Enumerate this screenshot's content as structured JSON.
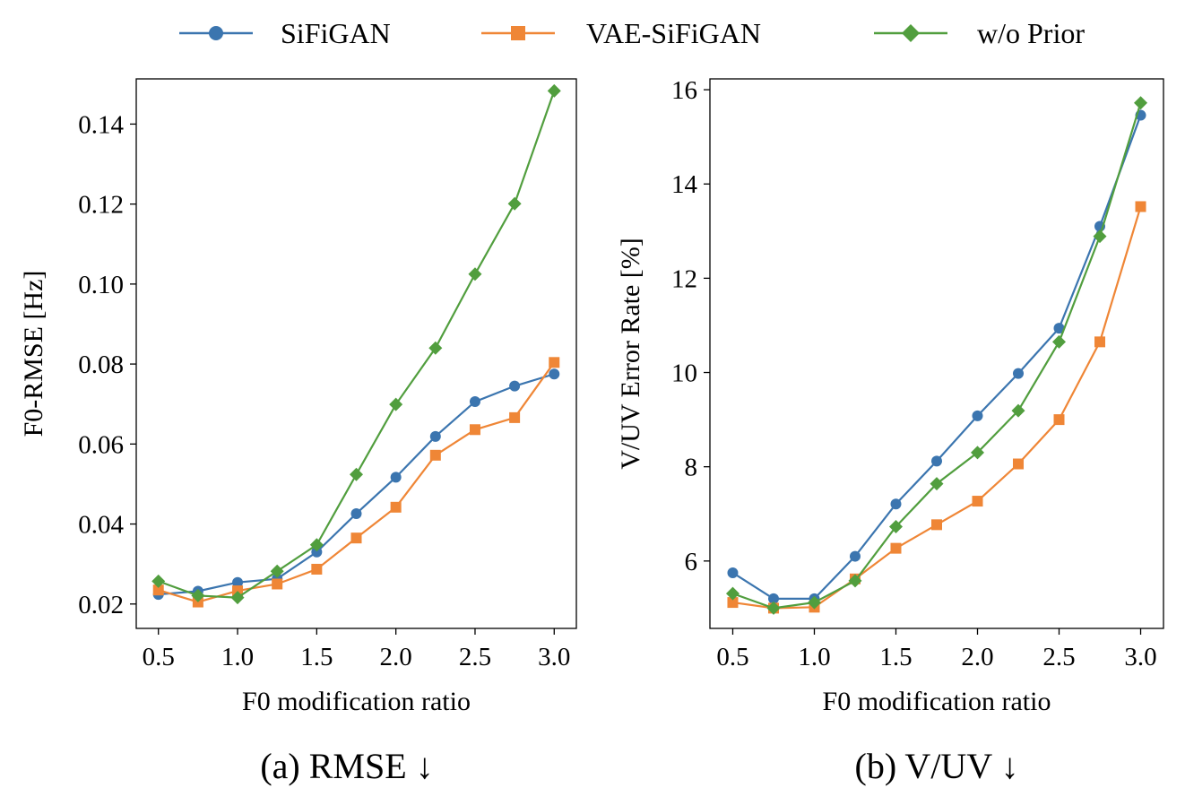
{
  "legend": {
    "entries": [
      {
        "label": "SiFiGAN",
        "color": "#3b75af",
        "marker": "circle"
      },
      {
        "label": "VAE-SiFiGAN",
        "color": "#ef8636",
        "marker": "square"
      },
      {
        "label": "w/o Prior",
        "color": "#519e3e",
        "marker": "diamond"
      }
    ]
  },
  "chart_data": [
    {
      "type": "line",
      "caption": "(a) RMSE ↓",
      "xlabel": "F0 modification ratio",
      "ylabel": "F0-RMSE [Hz]",
      "xlim": [
        0.36,
        3.14
      ],
      "ylim": [
        0.0139,
        0.1513
      ],
      "x_ticks": [
        "0.5",
        "1.0",
        "1.5",
        "2.0",
        "2.5",
        "3.0"
      ],
      "y_ticks": [
        "0.02",
        "0.04",
        "0.06",
        "0.08",
        "0.10",
        "0.12",
        "0.14"
      ],
      "x": [
        0.5,
        0.75,
        1.0,
        1.25,
        1.5,
        1.75,
        2.0,
        2.25,
        2.5,
        2.75,
        3.0
      ],
      "series": [
        {
          "name": "SiFiGAN",
          "color": "#3b75af",
          "marker": "circle",
          "values": [
            0.0224,
            0.0232,
            0.0254,
            0.0263,
            0.033,
            0.0426,
            0.0517,
            0.0619,
            0.0706,
            0.0745,
            0.0775
          ]
        },
        {
          "name": "VAE-SiFiGAN",
          "color": "#ef8636",
          "marker": "square",
          "values": [
            0.0235,
            0.0205,
            0.0233,
            0.025,
            0.0287,
            0.0365,
            0.0442,
            0.0572,
            0.0636,
            0.0666,
            0.0804
          ]
        },
        {
          "name": "w/o Prior",
          "color": "#519e3e",
          "marker": "diamond",
          "values": [
            0.0257,
            0.0221,
            0.0216,
            0.0282,
            0.0348,
            0.0524,
            0.0699,
            0.084,
            0.1025,
            0.1201,
            0.1483
          ]
        }
      ]
    },
    {
      "type": "line",
      "caption": "(b) V/UV ↓",
      "xlabel": "F0 modification ratio",
      "ylabel": "V/UV Error Rate [%]",
      "xlim": [
        0.36,
        3.14
      ],
      "ylim": [
        4.57,
        16.23
      ],
      "x_ticks": [
        "0.5",
        "1.0",
        "1.5",
        "2.0",
        "2.5",
        "3.0"
      ],
      "y_ticks": [
        "6",
        "8",
        "10",
        "12",
        "14",
        "16"
      ],
      "x": [
        0.5,
        0.75,
        1.0,
        1.25,
        1.5,
        1.75,
        2.0,
        2.25,
        2.5,
        2.75,
        3.0
      ],
      "series": [
        {
          "name": "SiFiGAN",
          "color": "#3b75af",
          "marker": "circle",
          "values": [
            5.75,
            5.2,
            5.2,
            6.1,
            7.21,
            8.12,
            9.08,
            9.98,
            10.94,
            13.1,
            15.46
          ]
        },
        {
          "name": "VAE-SiFiGAN",
          "color": "#ef8636",
          "marker": "square",
          "values": [
            5.12,
            5.0,
            5.02,
            5.62,
            6.27,
            6.77,
            7.27,
            8.06,
            9.0,
            10.65,
            13.52
          ]
        },
        {
          "name": "w/o Prior",
          "color": "#519e3e",
          "marker": "diamond",
          "values": [
            5.31,
            5.0,
            5.12,
            5.58,
            6.73,
            7.64,
            8.3,
            9.19,
            10.65,
            12.89,
            15.72
          ]
        }
      ]
    }
  ]
}
